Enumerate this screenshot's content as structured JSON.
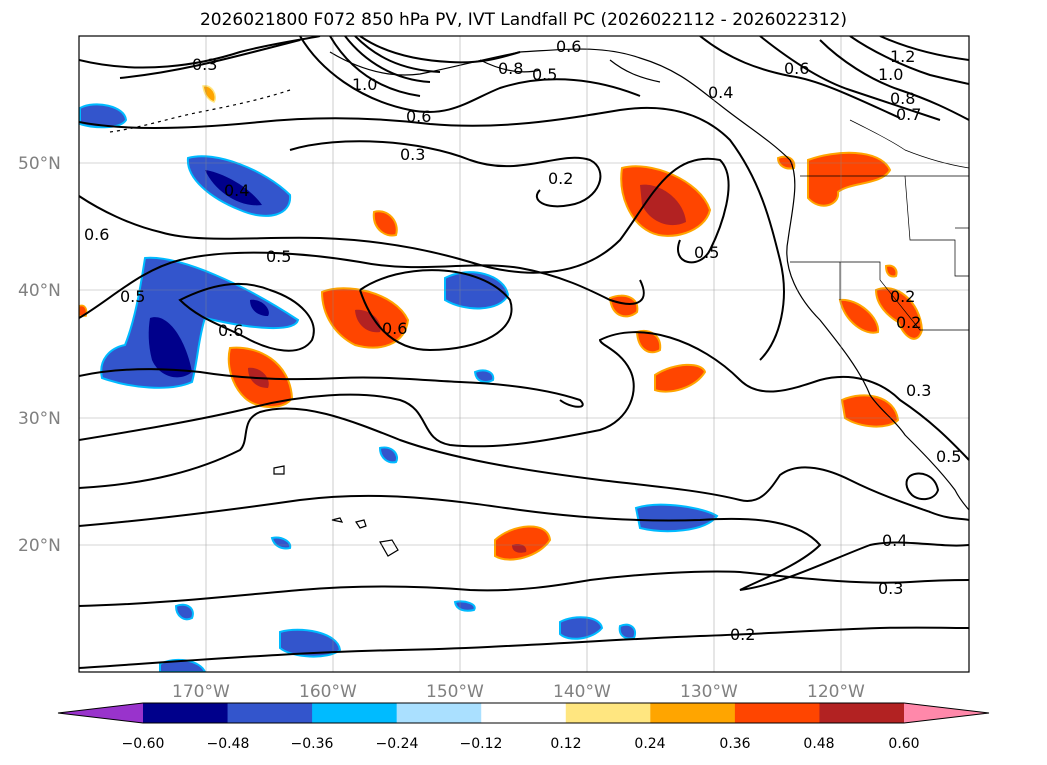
{
  "figure": {
    "title": "2026021800 F072 850 hPa PV, IVT Landfall PC (2026022112 - 2026022312)"
  },
  "map": {
    "lat_labels": [
      "50°N",
      "40°N",
      "30°N",
      "20°N"
    ],
    "lon_labels": [
      "170°W",
      "160°W",
      "150°W",
      "140°W",
      "130°W",
      "120°W"
    ],
    "contour_labels": [
      "0.3",
      "0.6",
      "1.0",
      "0.5",
      "0.8",
      "1.2",
      "1.0",
      "0.8",
      "0.7",
      "0.6",
      "0.4",
      "0.6",
      "0.3",
      "0.2",
      "0.4",
      "0.6",
      "0.5",
      "0.5",
      "0.6",
      "0.6",
      "0.5",
      "0.2",
      "0.2",
      "0.3",
      "0.5",
      "0.4",
      "0.3",
      "0.2"
    ]
  },
  "colorbar": {
    "ticks": [
      "−0.60",
      "−0.48",
      "−0.36",
      "−0.24",
      "−0.12",
      "0.12",
      "0.24",
      "0.36",
      "0.48",
      "0.60"
    ],
    "colors": [
      "#9933cc",
      "#00008b",
      "#3355cc",
      "#00bbff",
      "#aae0ff",
      "#ffffff",
      "#ffe680",
      "#ffa500",
      "#ff4500",
      "#b22222",
      "#ff88aa"
    ]
  }
}
